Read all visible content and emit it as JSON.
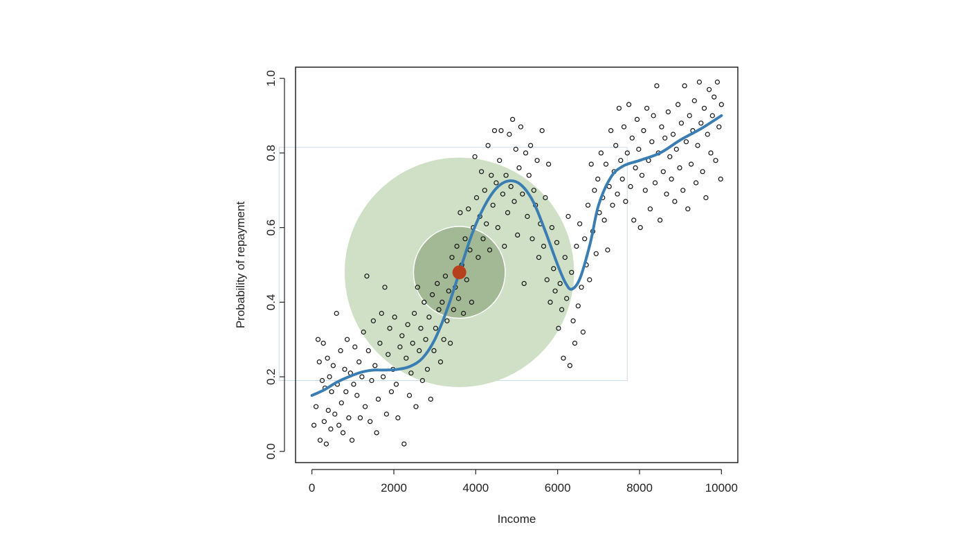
{
  "chart_data": {
    "type": "scatter",
    "title": "",
    "xlabel": "Income",
    "ylabel": "Probability of repayment",
    "xlim": [
      -400,
      10400
    ],
    "ylim": [
      -0.03,
      1.03
    ],
    "xticks": [
      0,
      2000,
      4000,
      6000,
      8000,
      10000
    ],
    "yticks": [
      0.0,
      0.2,
      0.4,
      0.6,
      0.8,
      1.0
    ],
    "xtick_labels": [
      "0",
      "2000",
      "4000",
      "6000",
      "8000",
      "10000"
    ],
    "ytick_labels": [
      "0.0",
      "0.2",
      "0.4",
      "0.6",
      "0.8",
      "1.0"
    ],
    "grid": false,
    "legend": "none",
    "colors": {
      "points": "#111111",
      "curve": "#3a7db3",
      "outer_neighborhood": "#cfe0c6",
      "inner_neighborhood": "#a3b894",
      "target_point": "#b5401e",
      "highlight_box": "#c8dce8"
    },
    "highlight": {
      "target": {
        "x": 3600,
        "y": 0.48
      },
      "outer_radius_x": 2800,
      "inner_radius_x": 1120,
      "box_x": [
        -800,
        7700
      ],
      "box_y": [
        0.19,
        0.815
      ]
    },
    "smooth_curve": [
      [
        0,
        0.15
      ],
      [
        300,
        0.165
      ],
      [
        600,
        0.185
      ],
      [
        900,
        0.2
      ],
      [
        1200,
        0.212
      ],
      [
        1500,
        0.218
      ],
      [
        1800,
        0.218
      ],
      [
        2100,
        0.22
      ],
      [
        2400,
        0.228
      ],
      [
        2700,
        0.25
      ],
      [
        3000,
        0.3
      ],
      [
        3300,
        0.38
      ],
      [
        3600,
        0.48
      ],
      [
        3900,
        0.58
      ],
      [
        4200,
        0.655
      ],
      [
        4500,
        0.705
      ],
      [
        4800,
        0.725
      ],
      [
        5100,
        0.715
      ],
      [
        5400,
        0.67
      ],
      [
        5700,
        0.59
      ],
      [
        6000,
        0.5
      ],
      [
        6200,
        0.45
      ],
      [
        6350,
        0.435
      ],
      [
        6550,
        0.465
      ],
      [
        6800,
        0.56
      ],
      [
        7000,
        0.66
      ],
      [
        7300,
        0.735
      ],
      [
        7600,
        0.765
      ],
      [
        8000,
        0.78
      ],
      [
        8500,
        0.8
      ],
      [
        9000,
        0.835
      ],
      [
        9500,
        0.865
      ],
      [
        10000,
        0.9
      ]
    ],
    "points": [
      [
        50,
        0.07
      ],
      [
        100,
        0.12
      ],
      [
        150,
        0.3
      ],
      [
        180,
        0.24
      ],
      [
        200,
        0.03
      ],
      [
        250,
        0.19
      ],
      [
        280,
        0.29
      ],
      [
        300,
        0.08
      ],
      [
        320,
        0.17
      ],
      [
        350,
        0.02
      ],
      [
        380,
        0.25
      ],
      [
        400,
        0.11
      ],
      [
        430,
        0.2
      ],
      [
        460,
        0.06
      ],
      [
        480,
        0.16
      ],
      [
        520,
        0.23
      ],
      [
        560,
        0.1
      ],
      [
        600,
        0.37
      ],
      [
        620,
        0.18
      ],
      [
        660,
        0.07
      ],
      [
        700,
        0.27
      ],
      [
        720,
        0.13
      ],
      [
        760,
        0.05
      ],
      [
        800,
        0.22
      ],
      [
        830,
        0.16
      ],
      [
        860,
        0.3
      ],
      [
        900,
        0.09
      ],
      [
        940,
        0.21
      ],
      [
        980,
        0.03
      ],
      [
        1020,
        0.18
      ],
      [
        1050,
        0.28
      ],
      [
        1100,
        0.15
      ],
      [
        1150,
        0.24
      ],
      [
        1180,
        0.09
      ],
      [
        1220,
        0.2
      ],
      [
        1260,
        0.32
      ],
      [
        1300,
        0.12
      ],
      [
        1340,
        0.47
      ],
      [
        1380,
        0.27
      ],
      [
        1420,
        0.08
      ],
      [
        1460,
        0.19
      ],
      [
        1500,
        0.35
      ],
      [
        1540,
        0.23
      ],
      [
        1580,
        0.05
      ],
      [
        1620,
        0.14
      ],
      [
        1660,
        0.29
      ],
      [
        1700,
        0.37
      ],
      [
        1740,
        0.2
      ],
      [
        1780,
        0.44
      ],
      [
        1820,
        0.1
      ],
      [
        1860,
        0.26
      ],
      [
        1900,
        0.33
      ],
      [
        1940,
        0.16
      ],
      [
        1980,
        0.22
      ],
      [
        2020,
        0.36
      ],
      [
        2060,
        0.18
      ],
      [
        2100,
        0.09
      ],
      [
        2150,
        0.28
      ],
      [
        2200,
        0.31
      ],
      [
        2250,
        0.02
      ],
      [
        2300,
        0.25
      ],
      [
        2340,
        0.34
      ],
      [
        2380,
        0.15
      ],
      [
        2420,
        0.21
      ],
      [
        2460,
        0.29
      ],
      [
        2500,
        0.37
      ],
      [
        2540,
        0.12
      ],
      [
        2580,
        0.44
      ],
      [
        2620,
        0.27
      ],
      [
        2660,
        0.33
      ],
      [
        2700,
        0.19
      ],
      [
        2740,
        0.4
      ],
      [
        2780,
        0.3
      ],
      [
        2820,
        0.22
      ],
      [
        2860,
        0.36
      ],
      [
        2900,
        0.14
      ],
      [
        2940,
        0.42
      ],
      [
        2980,
        0.27
      ],
      [
        3020,
        0.33
      ],
      [
        3060,
        0.45
      ],
      [
        3100,
        0.38
      ],
      [
        3140,
        0.24
      ],
      [
        3180,
        0.4
      ],
      [
        3220,
        0.3
      ],
      [
        3260,
        0.47
      ],
      [
        3300,
        0.35
      ],
      [
        3340,
        0.43
      ],
      [
        3380,
        0.29
      ],
      [
        3420,
        0.52
      ],
      [
        3460,
        0.38
      ],
      [
        3500,
        0.44
      ],
      [
        3540,
        0.55
      ],
      [
        3580,
        0.41
      ],
      [
        3620,
        0.64
      ],
      [
        3660,
        0.5
      ],
      [
        3700,
        0.37
      ],
      [
        3740,
        0.57
      ],
      [
        3780,
        0.46
      ],
      [
        3820,
        0.65
      ],
      [
        3860,
        0.54
      ],
      [
        3900,
        0.4
      ],
      [
        3940,
        0.6
      ],
      [
        3980,
        0.79
      ],
      [
        4020,
        0.68
      ],
      [
        4060,
        0.52
      ],
      [
        4100,
        0.63
      ],
      [
        4140,
        0.75
      ],
      [
        4180,
        0.57
      ],
      [
        4220,
        0.7
      ],
      [
        4260,
        0.61
      ],
      [
        4300,
        0.82
      ],
      [
        4340,
        0.54
      ],
      [
        4380,
        0.74
      ],
      [
        4420,
        0.66
      ],
      [
        4460,
        0.86
      ],
      [
        4500,
        0.72
      ],
      [
        4540,
        0.6
      ],
      [
        4580,
        0.78
      ],
      [
        4620,
        0.86
      ],
      [
        4660,
        0.69
      ],
      [
        4700,
        0.55
      ],
      [
        4740,
        0.74
      ],
      [
        4780,
        0.64
      ],
      [
        4820,
        0.85
      ],
      [
        4860,
        0.71
      ],
      [
        4900,
        0.89
      ],
      [
        4940,
        0.67
      ],
      [
        4980,
        0.81
      ],
      [
        5020,
        0.58
      ],
      [
        5060,
        0.76
      ],
      [
        5100,
        0.87
      ],
      [
        5140,
        0.69
      ],
      [
        5180,
        0.45
      ],
      [
        5220,
        0.8
      ],
      [
        5260,
        0.63
      ],
      [
        5300,
        0.74
      ],
      [
        5340,
        0.82
      ],
      [
        5380,
        0.57
      ],
      [
        5420,
        0.7
      ],
      [
        5460,
        0.66
      ],
      [
        5500,
        0.78
      ],
      [
        5540,
        0.52
      ],
      [
        5580,
        0.61
      ],
      [
        5620,
        0.86
      ],
      [
        5660,
        0.55
      ],
      [
        5700,
        0.68
      ],
      [
        5740,
        0.46
      ],
      [
        5780,
        0.77
      ],
      [
        5820,
        0.4
      ],
      [
        5860,
        0.6
      ],
      [
        5900,
        0.49
      ],
      [
        5940,
        0.43
      ],
      [
        5980,
        0.56
      ],
      [
        6020,
        0.33
      ],
      [
        6060,
        0.45
      ],
      [
        6100,
        0.38
      ],
      [
        6140,
        0.25
      ],
      [
        6180,
        0.52
      ],
      [
        6220,
        0.41
      ],
      [
        6260,
        0.63
      ],
      [
        6300,
        0.23
      ],
      [
        6340,
        0.48
      ],
      [
        6380,
        0.35
      ],
      [
        6420,
        0.29
      ],
      [
        6460,
        0.55
      ],
      [
        6500,
        0.39
      ],
      [
        6540,
        0.61
      ],
      [
        6580,
        0.44
      ],
      [
        6620,
        0.32
      ],
      [
        6660,
        0.57
      ],
      [
        6700,
        0.5
      ],
      [
        6740,
        0.66
      ],
      [
        6780,
        0.46
      ],
      [
        6820,
        0.77
      ],
      [
        6860,
        0.59
      ],
      [
        6900,
        0.7
      ],
      [
        6940,
        0.53
      ],
      [
        6980,
        0.73
      ],
      [
        7020,
        0.64
      ],
      [
        7060,
        0.8
      ],
      [
        7100,
        0.68
      ],
      [
        7140,
        0.62
      ],
      [
        7180,
        0.77
      ],
      [
        7220,
        0.54
      ],
      [
        7260,
        0.71
      ],
      [
        7300,
        0.86
      ],
      [
        7340,
        0.66
      ],
      [
        7380,
        0.75
      ],
      [
        7420,
        0.82
      ],
      [
        7460,
        0.69
      ],
      [
        7500,
        0.92
      ],
      [
        7540,
        0.78
      ],
      [
        7580,
        0.73
      ],
      [
        7620,
        0.87
      ],
      [
        7660,
        0.67
      ],
      [
        7700,
        0.8
      ],
      [
        7740,
        0.93
      ],
      [
        7780,
        0.71
      ],
      [
        7820,
        0.84
      ],
      [
        7860,
        0.62
      ],
      [
        7900,
        0.76
      ],
      [
        7940,
        0.89
      ],
      [
        7980,
        0.81
      ],
      [
        8020,
        0.6
      ],
      [
        8060,
        0.74
      ],
      [
        8100,
        0.86
      ],
      [
        8140,
        0.7
      ],
      [
        8180,
        0.92
      ],
      [
        8220,
        0.78
      ],
      [
        8260,
        0.65
      ],
      [
        8300,
        0.83
      ],
      [
        8340,
        0.9
      ],
      [
        8380,
        0.72
      ],
      [
        8420,
        0.98
      ],
      [
        8460,
        0.8
      ],
      [
        8500,
        0.62
      ],
      [
        8540,
        0.87
      ],
      [
        8580,
        0.75
      ],
      [
        8620,
        0.84
      ],
      [
        8660,
        0.69
      ],
      [
        8700,
        0.91
      ],
      [
        8740,
        0.79
      ],
      [
        8780,
        0.73
      ],
      [
        8820,
        0.85
      ],
      [
        8860,
        0.67
      ],
      [
        8900,
        0.81
      ],
      [
        8940,
        0.93
      ],
      [
        8980,
        0.76
      ],
      [
        9020,
        0.88
      ],
      [
        9060,
        0.7
      ],
      [
        9100,
        0.98
      ],
      [
        9140,
        0.83
      ],
      [
        9180,
        0.65
      ],
      [
        9220,
        0.9
      ],
      [
        9260,
        0.77
      ],
      [
        9300,
        0.86
      ],
      [
        9340,
        0.94
      ],
      [
        9380,
        0.72
      ],
      [
        9420,
        0.82
      ],
      [
        9460,
        0.99
      ],
      [
        9500,
        0.88
      ],
      [
        9540,
        0.75
      ],
      [
        9580,
        0.92
      ],
      [
        9620,
        0.68
      ],
      [
        9660,
        0.85
      ],
      [
        9700,
        0.97
      ],
      [
        9740,
        0.8
      ],
      [
        9780,
        0.9
      ],
      [
        9820,
        0.95
      ],
      [
        9860,
        0.78
      ],
      [
        9900,
        0.99
      ],
      [
        9940,
        0.87
      ],
      [
        9980,
        0.73
      ],
      [
        10000,
        0.93
      ]
    ]
  }
}
